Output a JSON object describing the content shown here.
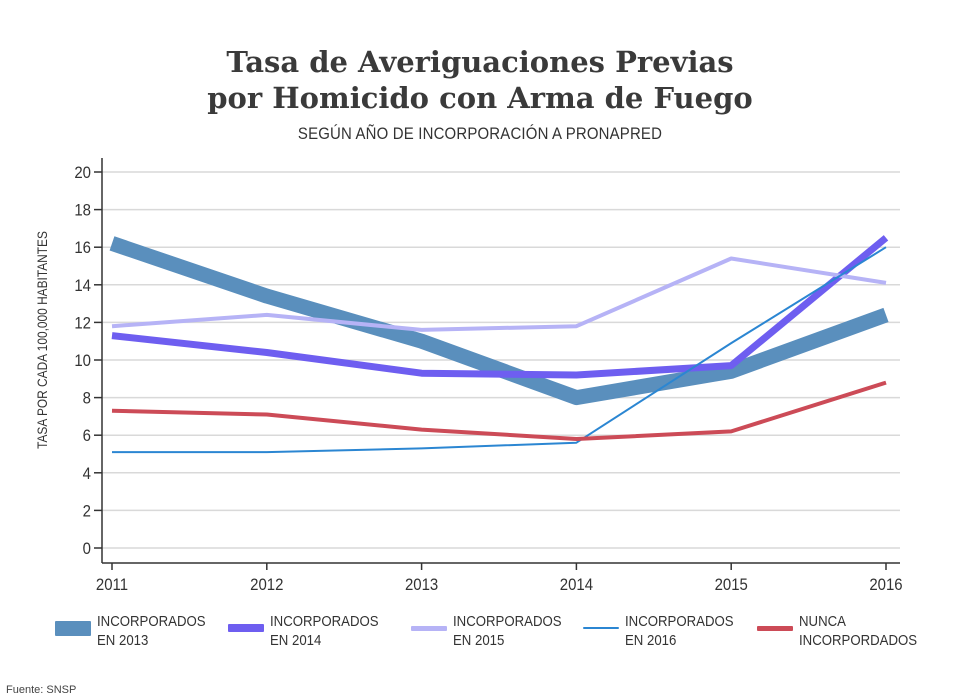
{
  "chart_data": {
    "type": "line",
    "title_line1": "Tasa de Averiguaciones Previas",
    "title_line2": "por Homicido con Arma de Fuego",
    "subtitle": "SEGÚN AÑO DE INCORPORACIÓN A PRONAPRED",
    "ylabel": "TASA POR CADA 100,000 HABITANTES",
    "xlabel": "",
    "x": [
      "2011",
      "2012",
      "2013",
      "2014",
      "2015",
      "2016"
    ],
    "yticks": [
      "0",
      "2",
      "4",
      "6",
      "8",
      "10",
      "12",
      "14",
      "16",
      "18",
      "20"
    ],
    "ylim": [
      0,
      20
    ],
    "grid": true,
    "legend_position": "bottom",
    "series": [
      {
        "line1": "INCORPORADOS",
        "line2": "EN 2013",
        "color": "#5a8fbd",
        "width": "heavy",
        "values": [
          16.2,
          13.4,
          11.0,
          8.0,
          9.4,
          12.4
        ]
      },
      {
        "line1": "INCORPORADOS",
        "line2": "EN 2014",
        "color": "#6e5ef0",
        "width": "medium",
        "values": [
          11.3,
          10.4,
          9.3,
          9.2,
          9.7,
          16.5
        ]
      },
      {
        "line1": "INCORPORADOS",
        "line2": "EN 2015",
        "color": "#b6b3f6",
        "width": "thin",
        "values": [
          11.8,
          12.4,
          11.6,
          11.8,
          15.4,
          14.1
        ]
      },
      {
        "line1": "INCORPORADOS",
        "line2": "EN 2016",
        "color": "#2b86d2",
        "width": "hairline",
        "values": [
          5.1,
          5.1,
          5.3,
          5.6,
          10.9,
          16.0
        ]
      },
      {
        "line1": "NUNCA",
        "line2": "INCORPORDADOS",
        "color": "#cc4b57",
        "width": "thin",
        "values": [
          7.3,
          7.1,
          6.3,
          5.8,
          6.2,
          8.8
        ]
      }
    ]
  },
  "source": "Fuente: SNSP"
}
